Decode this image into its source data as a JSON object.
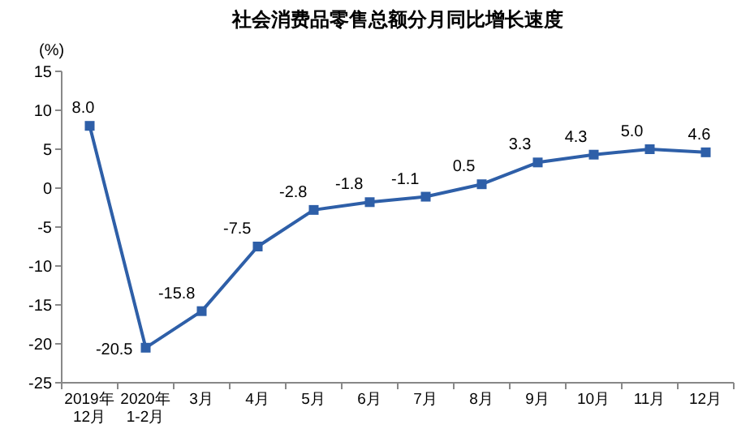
{
  "chart_data": {
    "type": "line",
    "title": "社会消费品零售总额分月同比增长速度",
    "ylabel": "(%)",
    "categories": [
      "2019年\n12月",
      "2020年\n1-2月",
      "3月",
      "4月",
      "5月",
      "6月",
      "7月",
      "8月",
      "9月",
      "10月",
      "11月",
      "12月"
    ],
    "series": [
      {
        "color": "#2e5fa8",
        "values": [
          8.0,
          -20.5,
          -15.8,
          -7.5,
          -2.8,
          -1.8,
          -1.1,
          0.5,
          3.3,
          4.3,
          5.0,
          4.6
        ]
      }
    ],
    "value_labels": [
      "8.0",
      "-20.5",
      "-15.8",
      "-7.5",
      "-2.8",
      "-1.8",
      "-1.1",
      "0.5",
      "3.3",
      "4.3",
      "5.0",
      "4.6"
    ],
    "ylim": [
      -25,
      15
    ],
    "yticks": [
      -25,
      -20,
      -15,
      -10,
      -5,
      0,
      5,
      10,
      15
    ],
    "marker": "square",
    "line_style": "solid"
  }
}
